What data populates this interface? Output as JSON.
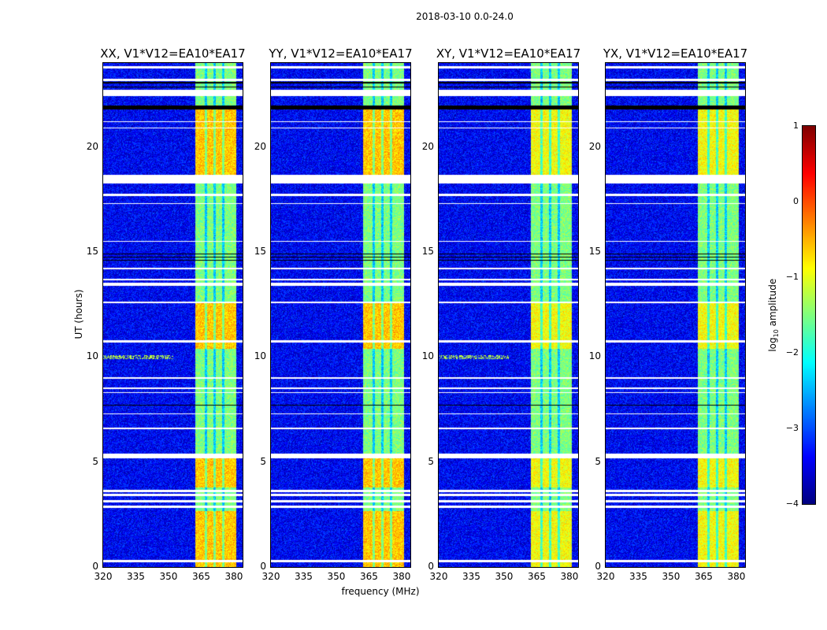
{
  "figure_title": "2018-03-10 0.0-24.0",
  "chart_data": {
    "type": "heatmap",
    "panels": [
      {
        "title": "XX, V1*V12=EA10*EA17"
      },
      {
        "title": "YY, V1*V12=EA10*EA17"
      },
      {
        "title": "XY, V1*V12=EA10*EA17"
      },
      {
        "title": "YX, V1*V12=EA10*EA17"
      }
    ],
    "xlabel": "frequency (MHz)",
    "ylabel": "UT (hours)",
    "xlim": [
      320,
      384
    ],
    "ylim": [
      0,
      24
    ],
    "xticks": [
      "320",
      "335",
      "350",
      "365",
      "380"
    ],
    "yticks": [
      "0",
      "5",
      "10",
      "15",
      "20"
    ],
    "colormap": "jet",
    "colorbar": {
      "label_main": "log",
      "label_sub": "10",
      "label_tail": " amplitude",
      "range": [
        -4,
        1
      ],
      "ticks": [
        "1",
        "0",
        "−1",
        "−2",
        "−3",
        "−4"
      ]
    },
    "bright_band_mhz": [
      362,
      381
    ],
    "band_dividers_mhz": [
      367,
      371,
      375
    ],
    "bright_periods_hours": [
      [
        0,
        2.7
      ],
      [
        3.8,
        5.2
      ],
      [
        10.4,
        12.6
      ],
      [
        18.7,
        22.0
      ]
    ],
    "flagged_white_hours": [
      [
        0.25,
        0.35
      ],
      [
        2.85,
        2.95
      ],
      [
        3.1,
        3.2
      ],
      [
        3.4,
        3.5
      ],
      [
        3.6,
        3.7
      ],
      [
        5.2,
        5.4
      ],
      [
        6.6,
        6.65
      ],
      [
        7.3,
        7.35
      ],
      [
        8.3,
        8.35
      ],
      [
        8.5,
        8.55
      ],
      [
        9.0,
        9.05
      ],
      [
        10.7,
        10.8
      ],
      [
        12.6,
        12.65
      ],
      [
        13.4,
        13.55
      ],
      [
        13.65,
        13.75
      ],
      [
        14.2,
        14.25
      ],
      [
        15.5,
        15.55
      ],
      [
        17.3,
        17.35
      ],
      [
        17.7,
        17.8
      ],
      [
        18.3,
        18.7
      ],
      [
        20.9,
        20.95
      ],
      [
        21.2,
        21.25
      ],
      [
        22.45,
        22.75
      ],
      [
        23.15,
        23.25
      ],
      [
        23.75,
        23.85
      ]
    ],
    "flagged_black_hours": [
      [
        7.7,
        7.75
      ],
      [
        14.6,
        14.65
      ],
      [
        14.75,
        14.8
      ],
      [
        14.9,
        14.95
      ],
      [
        21.8,
        22.0
      ],
      [
        22.85,
        22.9
      ],
      [
        23.05,
        23.1
      ]
    ],
    "background_log_amplitude": -3.4,
    "band_log_amplitude": -1.5,
    "bright_log_amplitude": -0.6
  }
}
